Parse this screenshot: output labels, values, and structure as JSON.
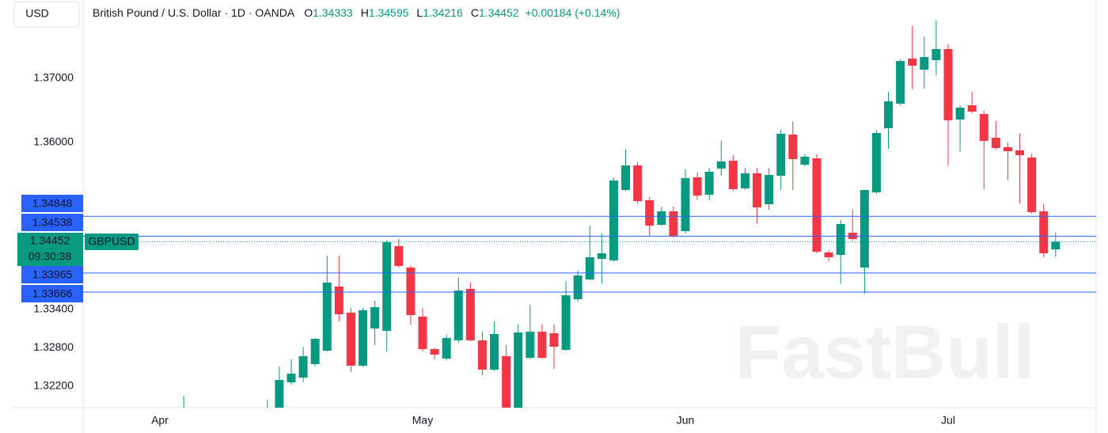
{
  "currency": "USD",
  "header": {
    "title": "British Pound / U.S. Dollar · 1D · OANDA",
    "ohlc_labels": [
      "O",
      "H",
      "L",
      "C"
    ],
    "change": "+0.00184 (+0.14%)"
  },
  "watermark": "FastBull",
  "chart_data": {
    "type": "candlestick",
    "symbol": "GBPUSD",
    "countdown": "09:30:38",
    "up_color": "#089981",
    "down_color": "#f23645",
    "level_color": "#2962ff",
    "categories": [
      "Apr",
      null,
      null,
      null,
      null,
      null,
      null,
      null,
      null,
      null,
      null,
      null,
      null,
      null,
      null,
      null,
      null,
      null,
      null,
      null,
      null,
      null,
      "May",
      null,
      null,
      null,
      null,
      null,
      null,
      null,
      null,
      null,
      null,
      null,
      null,
      null,
      null,
      null,
      null,
      null,
      null,
      null,
      null,
      null,
      "Jun",
      null,
      null,
      null,
      null,
      null,
      null,
      null,
      null,
      null,
      null,
      null,
      null,
      null,
      null,
      null,
      null,
      null,
      null,
      null,
      null,
      null,
      "Jul",
      null,
      null,
      null,
      null,
      null,
      null,
      null,
      null,
      null
    ],
    "open": [
      null,
      null,
      null,
      null,
      null,
      null,
      null,
      null,
      null,
      null,
      1.318,
      1.32259,
      1.32333,
      1.32543,
      1.32753,
      1.33753,
      1.33346,
      1.32519,
      1.33099,
      1.33062,
      1.34383,
      1.34049,
      1.33284,
      1.32778,
      1.3263,
      1.32914,
      1.33716,
      1.32914,
      1.32457,
      1.32667,
      1.318,
      1.32642,
      1.33049,
      1.33025,
      1.32765,
      1.33556,
      1.33864,
      1.34185,
      1.3416,
      1.35259,
      1.35642,
      1.35099,
      1.34716,
      1.34926,
      1.34617,
      1.35457,
      1.35185,
      1.35593,
      1.35716,
      1.35284,
      1.35519,
      1.35037,
      1.35481,
      1.36123,
      1.35654,
      1.35753,
      1.34284,
      1.34247,
      1.34593,
      1.34049,
      1.35222,
      1.36222,
      1.36605,
      1.37309,
      1.37136,
      1.37284,
      1.37457,
      1.36358,
      1.3658,
      1.36444,
      1.36074,
      1.35926,
      1.35877,
      1.35765,
      1.34926,
      1.34333
    ],
    "high": [
      null,
      null,
      1.32049,
      null,
      null,
      null,
      null,
      null,
      null,
      1.31988,
      1.32506,
      1.3262,
      1.3281,
      1.3295,
      1.34235,
      1.34235,
      1.3342,
      1.3342,
      1.3353,
      1.3447,
      1.345,
      1.3408,
      1.3342,
      1.328,
      1.33,
      1.3389,
      1.3382,
      1.3305,
      1.3321,
      1.3284,
      1.3316,
      1.3347,
      1.3316,
      1.3316,
      1.33836,
      1.34,
      1.34704,
      1.3458,
      1.3545,
      1.3589,
      1.357,
      1.3515,
      1.35,
      1.35,
      1.3558,
      1.3553,
      1.356,
      1.3603,
      1.358,
      1.356,
      1.356,
      1.356,
      1.362,
      1.3633,
      1.3582,
      1.3582,
      1.3432,
      1.3479,
      1.3495,
      1.3526,
      1.362,
      1.3679,
      1.373,
      1.3782,
      1.3765,
      1.379,
      1.3753,
      1.3658,
      1.3679,
      1.365,
      1.3633,
      1.36,
      1.3614,
      1.3583,
      1.3504,
      1.34595
    ],
    "low": [
      null,
      null,
      null,
      null,
      null,
      null,
      null,
      null,
      null,
      null,
      1.3175,
      1.3222,
      1.3226,
      1.3251,
      1.3274,
      1.3321,
      1.3242,
      1.325,
      1.3284,
      1.3274,
      1.3405,
      1.3316,
      1.3274,
      1.3262,
      1.326,
      1.3287,
      1.329,
      1.3237,
      1.3244,
      1.317,
      1.3175,
      1.3262,
      1.3262,
      1.3247,
      1.3275,
      1.3352,
      1.3385,
      1.338,
      1.3414,
      1.3524,
      1.3505,
      1.3453,
      1.347,
      1.3452,
      1.3458,
      1.351,
      1.351,
      1.3548,
      1.3525,
      1.3526,
      1.3474,
      1.3495,
      1.3526,
      1.3526,
      1.3563,
      1.3427,
      1.3414,
      1.338,
      1.3447,
      1.3364,
      1.352,
      1.359,
      1.3658,
      1.3683,
      1.3684,
      1.3705,
      1.3564,
      1.3586,
      1.3646,
      1.3527,
      1.3589,
      1.3542,
      1.3505,
      1.3489,
      1.3421,
      1.34216
    ],
    "close": [
      null,
      null,
      null,
      null,
      null,
      null,
      null,
      null,
      null,
      null,
      1.32296,
      1.32395,
      1.32667,
      1.32938,
      1.33815,
      1.33321,
      1.32519,
      1.33383,
      1.33432,
      1.34444,
      1.34074,
      1.33309,
      1.32778,
      1.32691,
      1.32951,
      1.33691,
      1.32914,
      1.32457,
      1.33012,
      1.3178,
      1.33037,
      1.33049,
      1.32642,
      1.32815,
      1.33617,
      1.33926,
      1.3421,
      1.34272,
      1.35407,
      1.35642,
      1.35086,
      1.34704,
      1.34926,
      1.34543,
      1.35444,
      1.35173,
      1.35543,
      1.35704,
      1.35272,
      1.35519,
      1.34988,
      1.35494,
      1.36136,
      1.35741,
      1.35778,
      1.34296,
      1.3421,
      1.34728,
      1.34494,
      1.35259,
      1.36148,
      1.36642,
      1.37272,
      1.37198,
      1.37333,
      1.37457,
      1.36346,
      1.36543,
      1.36481,
      1.36025,
      1.35914,
      1.35864,
      1.35802,
      1.34914,
      1.34272,
      1.34452
    ],
    "price_lines": [
      1.34848,
      1.34538,
      1.33965,
      1.33666
    ],
    "ylim": [
      1.31864,
      1.38222
    ],
    "yticks": [
      {
        "value": 1.37,
        "label": "1.37000"
      },
      {
        "value": 1.36,
        "label": "1.36000"
      },
      {
        "value": 1.334,
        "label": "1.33400"
      },
      {
        "value": 1.328,
        "label": "1.32800"
      },
      {
        "value": 1.322,
        "label": "1.32200"
      }
    ]
  }
}
